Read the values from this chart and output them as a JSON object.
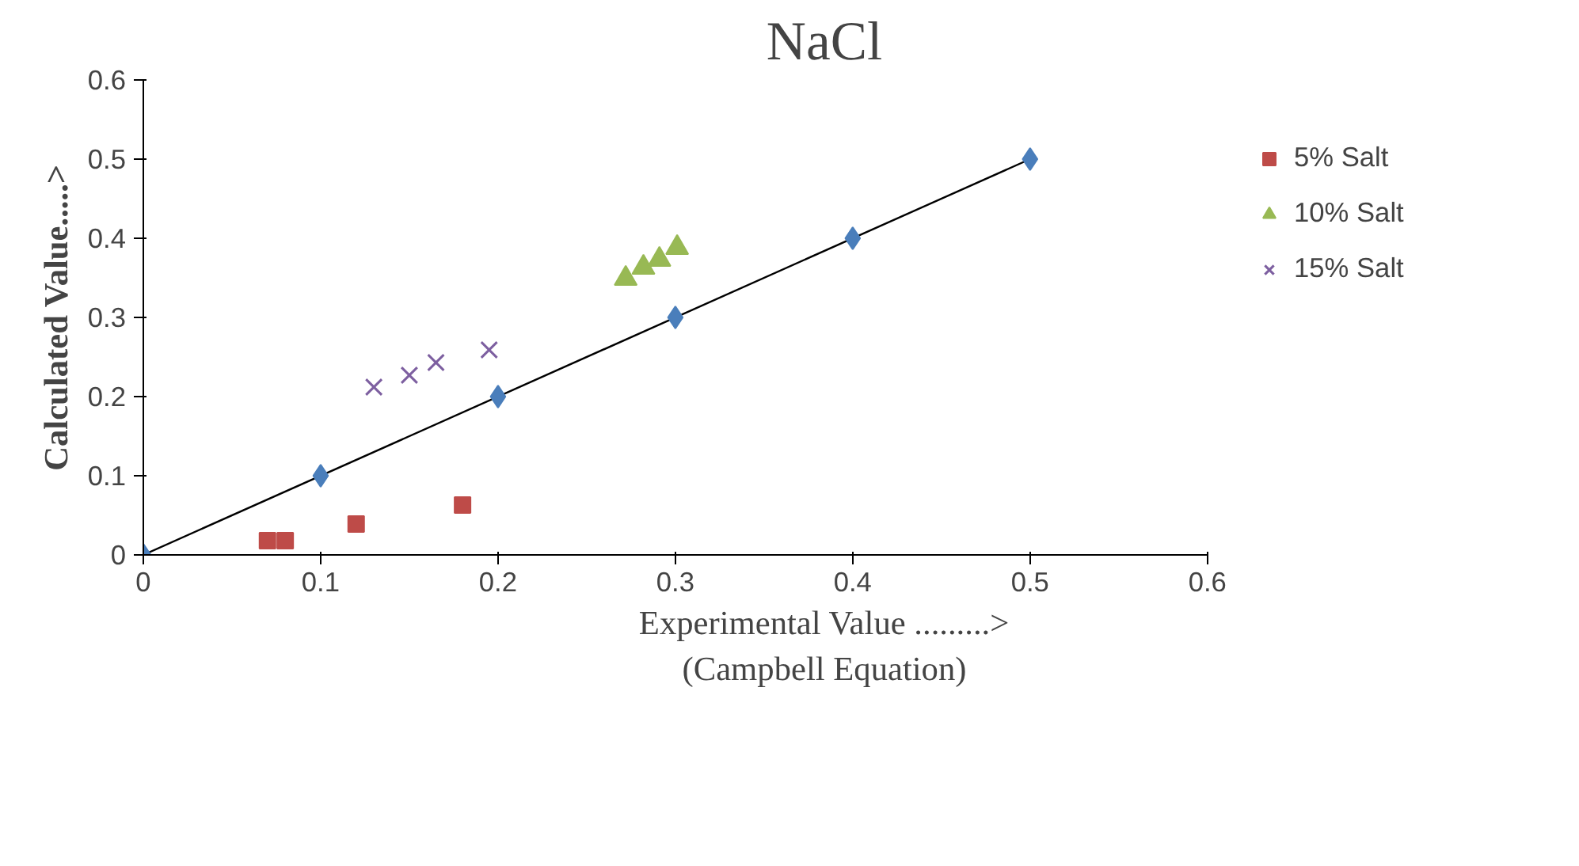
{
  "chart_data": {
    "type": "scatter",
    "title": "NaCl",
    "xlabel": "Experimental Value .........>\n(Campbell Equation)",
    "ylabel": "Calculated Value.....>",
    "xlim": [
      0,
      0.6
    ],
    "ylim": [
      0,
      0.6
    ],
    "xticks": [
      0,
      0.1,
      0.2,
      0.3,
      0.4,
      0.5,
      0.6
    ],
    "yticks": [
      0,
      0.1,
      0.2,
      0.3,
      0.4,
      0.5,
      0.6
    ],
    "grid": false,
    "legend": "right",
    "series": [
      {
        "type": "line",
        "color": "#000000",
        "x": [
          0,
          0.5
        ],
        "values": [
          0,
          0.5
        ],
        "marker": "none",
        "line_style": "solid"
      },
      {
        "color": "#4a7ebb",
        "marker": "diamond",
        "x": [
          0,
          0.1,
          0.2,
          0.3,
          0.4,
          0.5
        ],
        "values": [
          0,
          0.1,
          0.2,
          0.3,
          0.4,
          0.5
        ]
      },
      {
        "name": "5% Salt",
        "color": "#be4b48",
        "marker": "square",
        "x": [
          0.07,
          0.08,
          0.12,
          0.18
        ],
        "values": [
          0.018,
          0.018,
          0.039,
          0.063
        ]
      },
      {
        "name": "10% Salt",
        "color": "#98b954",
        "marker": "triangle",
        "x": [
          0.272,
          0.282,
          0.291,
          0.301
        ],
        "values": [
          0.349,
          0.363,
          0.373,
          0.388
        ]
      },
      {
        "name": "15% Salt",
        "color": "#7d5fa0",
        "marker": "cross",
        "x": [
          0.13,
          0.15,
          0.165,
          0.195
        ],
        "values": [
          0.212,
          0.227,
          0.243,
          0.259
        ]
      }
    ]
  }
}
